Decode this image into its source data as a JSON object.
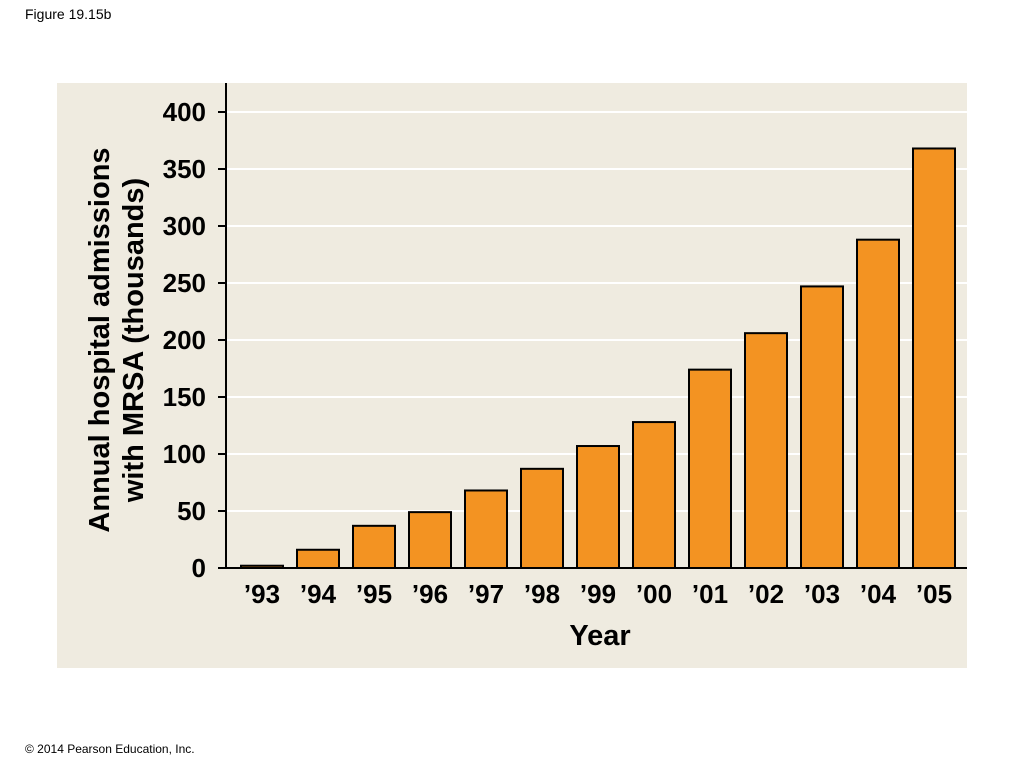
{
  "figure_label": "Figure 19.15b",
  "copyright": "© 2014 Pearson Education, Inc.",
  "colors": {
    "panel_background": "#efebe0",
    "bar_fill": "#f39322",
    "bar_stroke": "#000000",
    "gridline": "#ffffff",
    "axis": "#000000"
  },
  "chart_data": {
    "type": "bar",
    "categories": [
      "’93",
      "’94",
      "’95",
      "’96",
      "’97",
      "’98",
      "’99",
      "’00",
      "’01",
      "’02",
      "’03",
      "’04",
      "’05"
    ],
    "values": [
      2,
      16,
      37,
      49,
      68,
      87,
      107,
      128,
      174,
      206,
      247,
      288,
      368
    ],
    "xlabel": "Year",
    "ylabel_lines": [
      "Annual hospital admissions",
      "with MRSA (thousands)"
    ],
    "ylim": [
      0,
      400
    ],
    "yticks": [
      0,
      50,
      100,
      150,
      200,
      250,
      300,
      350,
      400
    ],
    "grid": true,
    "legend": false
  }
}
